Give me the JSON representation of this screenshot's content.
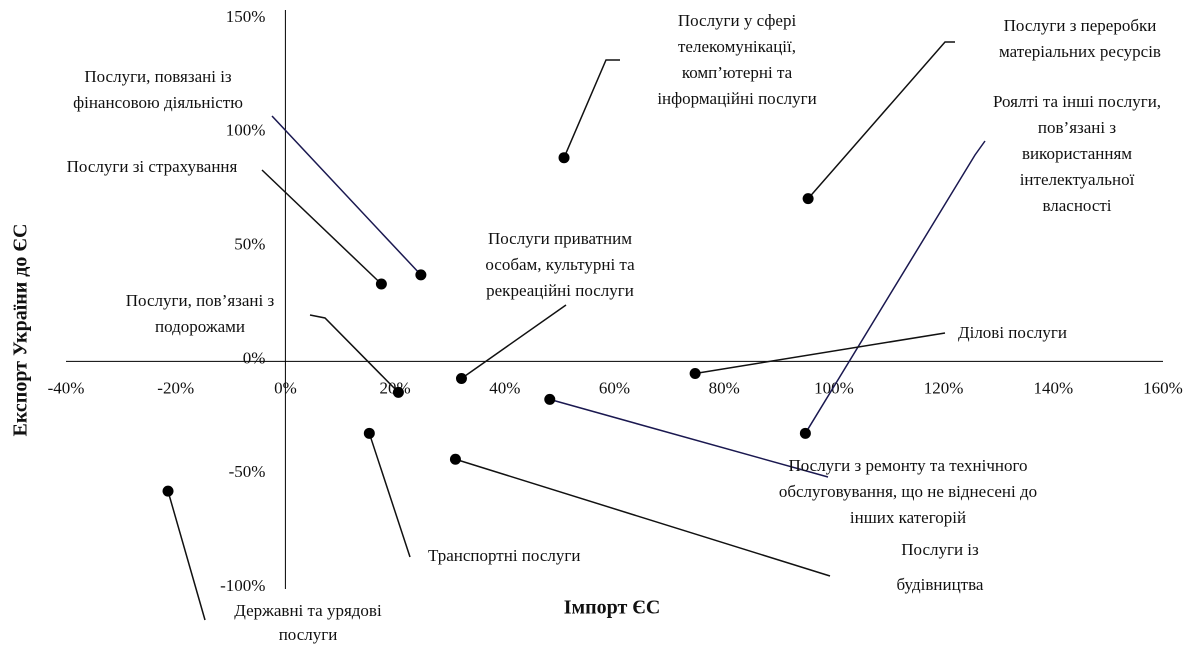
{
  "chart_data": {
    "type": "scatter",
    "x_label": "Імпорт ЄС",
    "y_label": "Експорт України до ЄС",
    "xlim": [
      -40,
      160
    ],
    "ylim": [
      -100,
      150
    ],
    "xticks": [
      {
        "value": -40,
        "label": "-40%"
      },
      {
        "value": -20,
        "label": "-20%"
      },
      {
        "value": 0,
        "label": "0%"
      },
      {
        "value": 20,
        "label": "20%"
      },
      {
        "value": 40,
        "label": "40%"
      },
      {
        "value": 60,
        "label": "60%"
      },
      {
        "value": 80,
        "label": "80%"
      },
      {
        "value": 100,
        "label": "100%"
      },
      {
        "value": 120,
        "label": "120%"
      },
      {
        "value": 140,
        "label": "140%"
      },
      {
        "value": 160,
        "label": "160%"
      }
    ],
    "yticks": [
      {
        "value": 150,
        "label": "150%"
      },
      {
        "value": 100,
        "label": "100%"
      },
      {
        "value": 50,
        "label": "50%"
      },
      {
        "value": 0,
        "label": "0%"
      },
      {
        "value": -50,
        "label": "-50%"
      },
      {
        "value": -100,
        "label": "-100%"
      }
    ],
    "color": "#000000",
    "x": [
      24.7,
      17.5,
      50.8,
      95.3,
      94.8,
      32.1,
      20.6,
      74.7,
      48.2,
      15.3,
      31.0,
      -21.4
    ],
    "y": [
      38,
      34,
      89.5,
      71.5,
      -31.6,
      -7.5,
      -13.6,
      -5.3,
      -16.7,
      -31.6,
      -43,
      -57
    ],
    "labels": [
      [
        "Послуги, повязані із",
        "фінансовою діяльністю"
      ],
      [
        "Послуги зі страхування"
      ],
      [
        "Послуги у сфері",
        "телекомунікації,",
        "комп’ютерні та",
        "інформаційні послуги"
      ],
      [
        "Послуги з переробки",
        "матеріальних ресурсів"
      ],
      [
        "Роялті та інші послуги,",
        "пов’язані з",
        "використанням",
        "інтелектуальної",
        "власності"
      ],
      [
        "Послуги приватним",
        "особам, культурні та",
        "рекреаційні послуги"
      ],
      [
        "Послуги, пов’язані з",
        "подорожами"
      ],
      [
        "Ділові послуги"
      ],
      [
        "Послуги з ремонту та технічного",
        "обслуговування, що не віднесені до",
        "інших категорій"
      ],
      [
        "Транспортні послуги"
      ],
      [
        "Послуги із",
        "будівництва"
      ],
      [
        "Державні та урядові",
        "послуги"
      ]
    ]
  }
}
